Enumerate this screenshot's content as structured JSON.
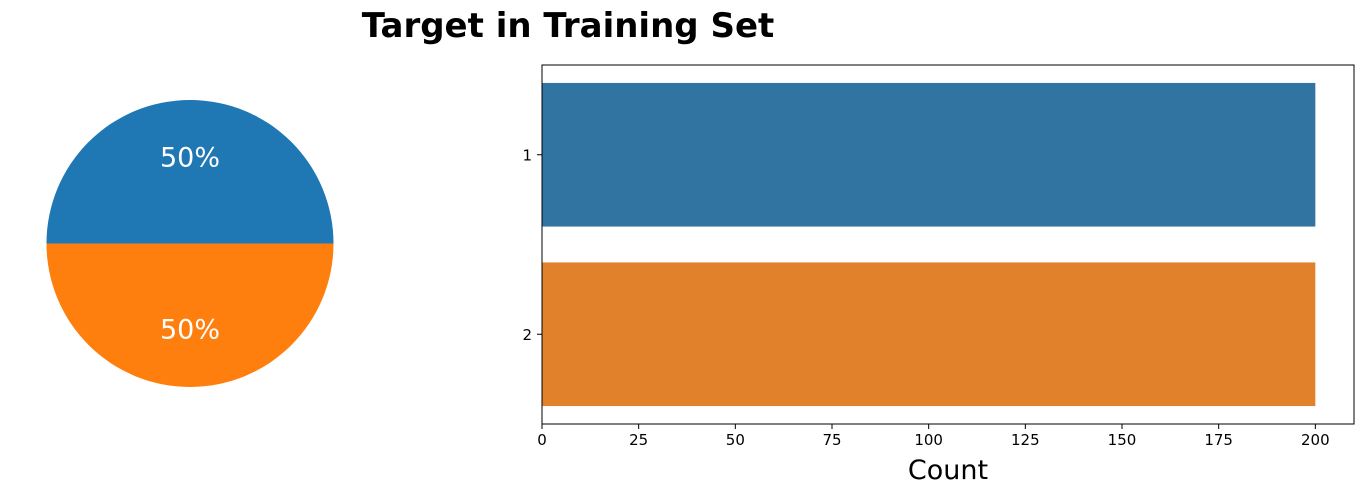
{
  "figure": {
    "title": "Target in Training Set"
  },
  "chart_data": [
    {
      "type": "pie",
      "categories": [
        "1",
        "2"
      ],
      "values": [
        50,
        50
      ],
      "labels": [
        "50%",
        "50%"
      ],
      "colors": [
        "#1f77b4",
        "#ff7f0e"
      ]
    },
    {
      "type": "bar",
      "orientation": "horizontal",
      "categories": [
        "1",
        "2"
      ],
      "values": [
        200,
        200
      ],
      "colors": [
        "#3274a1",
        "#e1812c"
      ],
      "xlabel": "Count",
      "ylabel": "",
      "xlim": [
        0,
        210
      ],
      "xticks": [
        0,
        25,
        50,
        75,
        100,
        125,
        150,
        175,
        200
      ],
      "grid": false
    }
  ]
}
